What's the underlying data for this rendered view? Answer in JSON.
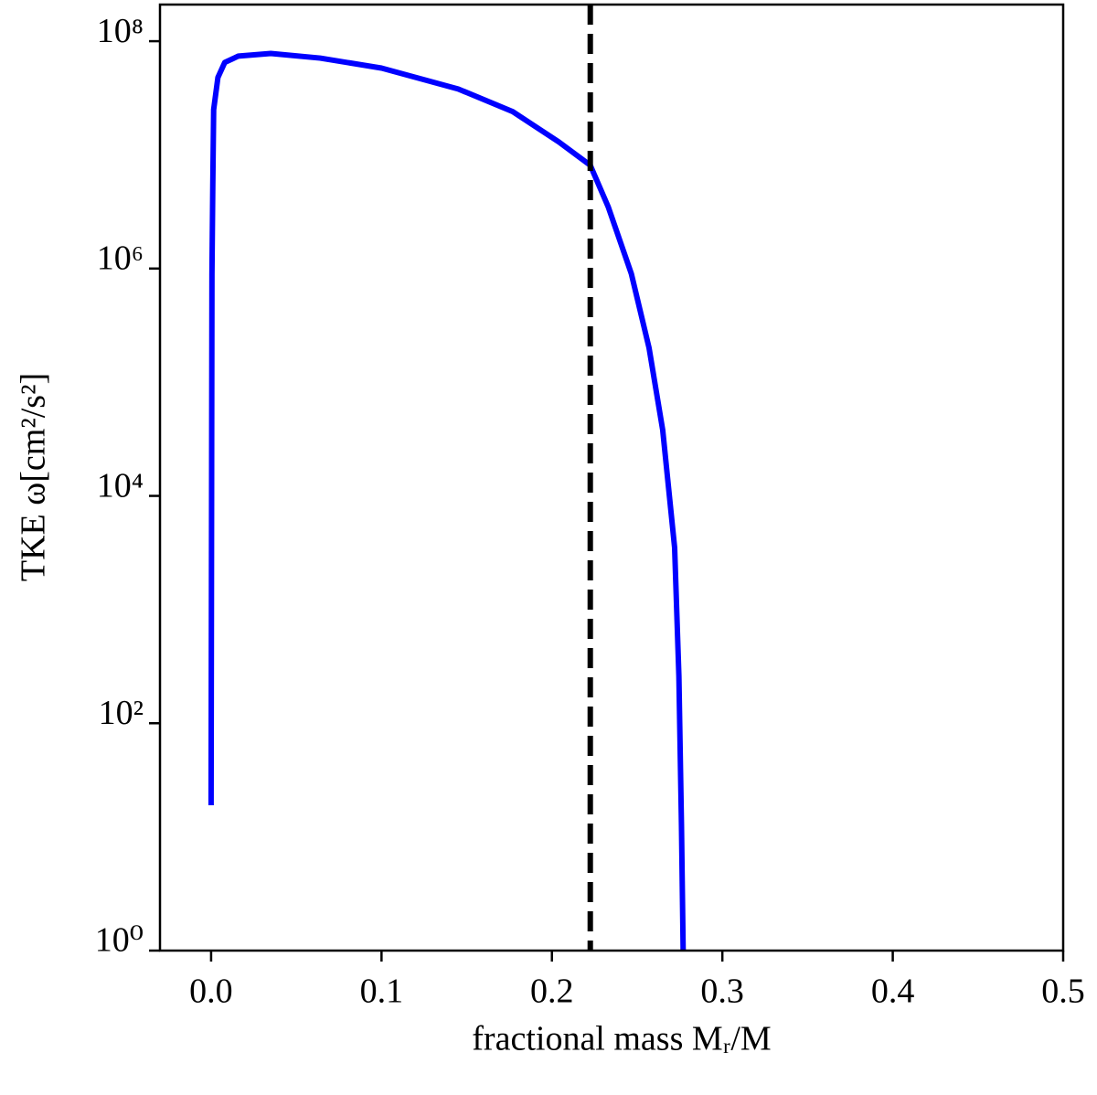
{
  "chart_data": {
    "type": "line",
    "xlabel": "fractional mass Mᵣ/M",
    "ylabel": "TKE ω[cm²/s²]",
    "x": [
      0,
      0.0005,
      0.001,
      0.0015,
      0.004,
      0.008,
      0.016,
      0.035,
      0.064,
      0.1,
      0.145,
      0.177,
      0.204,
      0.2225,
      0.233,
      0.2466,
      0.257,
      0.265,
      0.272,
      0.2745,
      0.276,
      0.277
    ],
    "series": [
      {
        "color": "#0000ff",
        "values": [
          19,
          900000,
          5600000,
          25000000,
          48000000,
          65000000,
          74000000,
          78000000,
          71000000,
          58000000,
          38000000,
          24000000,
          13000000,
          8100000,
          3500000,
          900000,
          200000,
          38000,
          3500,
          260,
          13,
          1
        ]
      }
    ],
    "vlines": [
      {
        "x": 0.2225,
        "color": "#000000",
        "style": "dashed"
      }
    ],
    "xlim": [
      -0.03,
      0.5
    ],
    "ylim": [
      1,
      210000000
    ],
    "yscale": "log",
    "xticks": [
      {
        "value": 0,
        "label": "0.0"
      },
      0.1,
      0.2,
      0.3,
      0.4,
      0.5
    ],
    "yticks": [
      {
        "value": 1,
        "label": "10⁰"
      },
      {
        "value": 100,
        "label": "10²"
      },
      {
        "value": 10000,
        "label": "10⁴"
      },
      {
        "value": 1000000,
        "label": "10⁶"
      },
      {
        "value": 100000000,
        "label": "10⁸"
      }
    ],
    "grid": false
  }
}
